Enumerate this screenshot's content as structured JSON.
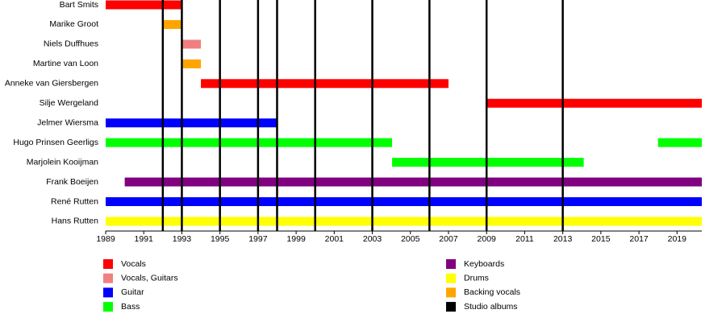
{
  "chart_data": {
    "type": "timeline",
    "categories": [
      "Bart Smits",
      "Marike Groot",
      "Niels Duffhues",
      "Martine van Loon",
      "Anneke van Giersbergen",
      "Silje Wergeland",
      "Jelmer Wiersma",
      "Hugo Prinsen Geerligs",
      "Marjolein Kooijman",
      "Frank Boeijen",
      "René Rutten",
      "Hans Rutten"
    ],
    "series": [
      {
        "name": "Vocals",
        "color": "#ff0000",
        "values": [
          [
            [
              1989,
              1993
            ]
          ],
          null,
          null,
          null,
          [
            [
              1994,
              2007
            ]
          ],
          [
            [
              2009,
              2020.3
            ]
          ],
          null,
          null,
          null,
          null,
          null,
          null
        ]
      },
      {
        "name": "Vocals, Guitars",
        "color": "#f08080",
        "values": [
          null,
          null,
          [
            [
              1993,
              1994
            ]
          ],
          null,
          null,
          null,
          null,
          null,
          null,
          null,
          null,
          null
        ]
      },
      {
        "name": "Guitar",
        "color": "#0000ff",
        "values": [
          null,
          null,
          null,
          null,
          null,
          null,
          [
            [
              1989,
              1998
            ]
          ],
          null,
          null,
          null,
          [
            [
              1989,
              2020.3
            ]
          ],
          null
        ]
      },
      {
        "name": "Bass",
        "color": "#00ff00",
        "values": [
          null,
          null,
          null,
          null,
          null,
          null,
          null,
          [
            [
              1989,
              2004.04
            ],
            [
              2018,
              2020.3
            ]
          ],
          [
            [
              2004.04,
              2014.1
            ]
          ],
          null,
          null,
          null
        ]
      },
      {
        "name": "Keyboards",
        "color": "#800080",
        "values": [
          null,
          null,
          null,
          null,
          null,
          null,
          null,
          null,
          null,
          [
            [
              1990,
              2020.3
            ]
          ],
          null,
          null
        ]
      },
      {
        "name": "Drums",
        "color": "#ffff00",
        "values": [
          null,
          null,
          null,
          null,
          null,
          null,
          null,
          null,
          null,
          null,
          null,
          [
            [
              1989,
              2020.3
            ]
          ]
        ]
      },
      {
        "name": "Backing vocals",
        "color": "#ffa500",
        "values": [
          null,
          [
            [
              1992,
              1993
            ]
          ],
          null,
          [
            [
              1993,
              1994
            ]
          ],
          null,
          null,
          null,
          null,
          null,
          null,
          null,
          null
        ]
      }
    ],
    "markers": {
      "name": "Studio albums",
      "color": "#000000",
      "x": [
        1992,
        1993,
        1995,
        1997,
        1998,
        2000,
        2003,
        2006,
        2009,
        2013
      ]
    },
    "xlim": [
      1989,
      2020.3
    ],
    "xticks": [
      1989,
      1991,
      1993,
      1995,
      1997,
      1999,
      2001,
      2003,
      2005,
      2007,
      2009,
      2011,
      2013,
      2015,
      2017,
      2019
    ]
  }
}
